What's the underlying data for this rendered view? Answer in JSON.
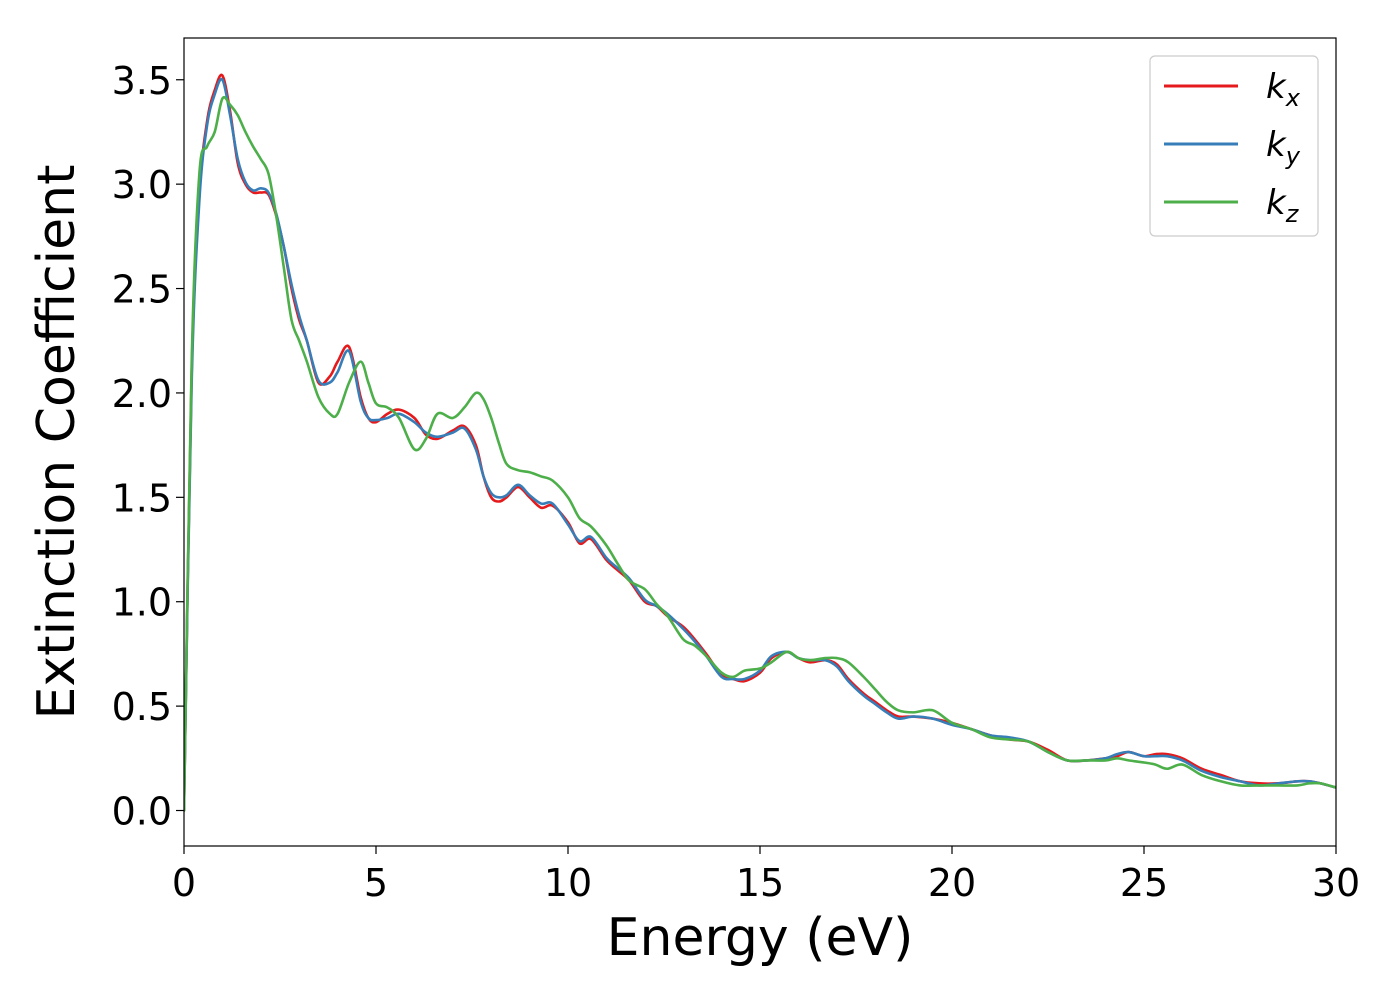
{
  "chart_data": {
    "type": "line",
    "title": "",
    "xlabel": "Energy (eV)",
    "ylabel": "Extinction Coefficient",
    "xlim": [
      0,
      30
    ],
    "ylim": [
      -0.17,
      3.7
    ],
    "x_ticks": [
      0,
      5,
      10,
      15,
      20,
      25,
      30
    ],
    "y_ticks": [
      0.0,
      0.5,
      1.0,
      1.5,
      2.0,
      2.5,
      3.0,
      3.5
    ],
    "x_tick_labels": [
      "0",
      "5",
      "10",
      "15",
      "20",
      "25",
      "30"
    ],
    "y_tick_labels": [
      "0.0",
      "0.5",
      "1.0",
      "1.5",
      "2.0",
      "2.5",
      "3.0",
      "3.5"
    ],
    "grid": false,
    "legend_position": "top-right",
    "series": [
      {
        "name": "k_x",
        "legend_base": "k",
        "legend_sub": "x",
        "color": "#e41a1c",
        "x": [
          0,
          0.2,
          0.4,
          0.6,
          0.8,
          1.0,
          1.2,
          1.4,
          1.6,
          1.8,
          2.0,
          2.2,
          2.4,
          2.6,
          2.8,
          3.0,
          3.2,
          3.5,
          3.8,
          4.0,
          4.3,
          4.6,
          4.8,
          5.0,
          5.3,
          5.6,
          6.0,
          6.3,
          6.6,
          7.0,
          7.3,
          7.6,
          7.8,
          8.0,
          8.2,
          8.4,
          8.7,
          9.0,
          9.3,
          9.6,
          10.0,
          10.3,
          10.6,
          11.0,
          11.3,
          11.6,
          12.0,
          12.3,
          12.6,
          13.0,
          13.3,
          13.6,
          14.0,
          14.3,
          14.6,
          15.0,
          15.3,
          15.7,
          16.0,
          16.3,
          16.7,
          17.0,
          17.3,
          17.7,
          18.0,
          18.3,
          18.6,
          19.0,
          19.5,
          20.0,
          20.5,
          21.0,
          21.5,
          22.0,
          22.5,
          23.0,
          23.5,
          24.0,
          24.3,
          24.6,
          25.0,
          25.3,
          25.6,
          26.0,
          26.5,
          27.0,
          27.5,
          28.0,
          28.5,
          29.0,
          29.3,
          29.6,
          30.0
        ],
        "values": [
          0.0,
          2.1,
          2.95,
          3.3,
          3.45,
          3.52,
          3.35,
          3.1,
          3.0,
          2.96,
          2.96,
          2.95,
          2.85,
          2.7,
          2.5,
          2.35,
          2.25,
          2.05,
          2.08,
          2.15,
          2.22,
          1.98,
          1.88,
          1.86,
          1.9,
          1.92,
          1.88,
          1.8,
          1.78,
          1.82,
          1.84,
          1.75,
          1.6,
          1.5,
          1.48,
          1.5,
          1.55,
          1.5,
          1.45,
          1.46,
          1.38,
          1.28,
          1.3,
          1.2,
          1.15,
          1.1,
          1.0,
          0.98,
          0.93,
          0.88,
          0.82,
          0.75,
          0.65,
          0.63,
          0.62,
          0.66,
          0.73,
          0.76,
          0.73,
          0.71,
          0.72,
          0.7,
          0.63,
          0.56,
          0.52,
          0.48,
          0.45,
          0.45,
          0.44,
          0.42,
          0.39,
          0.36,
          0.34,
          0.33,
          0.29,
          0.24,
          0.24,
          0.25,
          0.26,
          0.28,
          0.26,
          0.27,
          0.27,
          0.25,
          0.2,
          0.17,
          0.14,
          0.13,
          0.13,
          0.14,
          0.14,
          0.13,
          0.11
        ]
      },
      {
        "name": "k_y",
        "legend_base": "k",
        "legend_sub": "y",
        "color": "#377eb8",
        "x": [
          0,
          0.2,
          0.4,
          0.6,
          0.8,
          1.0,
          1.2,
          1.4,
          1.6,
          1.8,
          2.0,
          2.2,
          2.4,
          2.6,
          2.8,
          3.0,
          3.2,
          3.5,
          3.8,
          4.0,
          4.3,
          4.6,
          4.8,
          5.0,
          5.3,
          5.6,
          6.0,
          6.3,
          6.6,
          7.0,
          7.3,
          7.6,
          7.8,
          8.0,
          8.2,
          8.4,
          8.7,
          9.0,
          9.3,
          9.6,
          10.0,
          10.3,
          10.6,
          11.0,
          11.3,
          11.6,
          12.0,
          12.3,
          12.6,
          13.0,
          13.3,
          13.6,
          14.0,
          14.3,
          14.6,
          15.0,
          15.3,
          15.7,
          16.0,
          16.3,
          16.7,
          17.0,
          17.3,
          17.7,
          18.0,
          18.3,
          18.6,
          19.0,
          19.5,
          20.0,
          20.5,
          21.0,
          21.5,
          22.0,
          22.5,
          23.0,
          23.5,
          24.0,
          24.3,
          24.6,
          25.0,
          25.3,
          25.6,
          26.0,
          26.5,
          27.0,
          27.5,
          28.0,
          28.5,
          29.0,
          29.3,
          29.6,
          30.0
        ],
        "values": [
          0.0,
          2.05,
          2.92,
          3.28,
          3.43,
          3.5,
          3.33,
          3.12,
          3.01,
          2.97,
          2.98,
          2.96,
          2.86,
          2.7,
          2.52,
          2.37,
          2.25,
          2.06,
          2.05,
          2.1,
          2.2,
          1.96,
          1.88,
          1.87,
          1.88,
          1.9,
          1.86,
          1.81,
          1.79,
          1.81,
          1.83,
          1.73,
          1.6,
          1.52,
          1.5,
          1.51,
          1.56,
          1.51,
          1.47,
          1.47,
          1.37,
          1.29,
          1.31,
          1.21,
          1.16,
          1.11,
          1.01,
          0.98,
          0.94,
          0.87,
          0.81,
          0.74,
          0.64,
          0.63,
          0.63,
          0.67,
          0.74,
          0.76,
          0.73,
          0.72,
          0.72,
          0.69,
          0.62,
          0.55,
          0.51,
          0.47,
          0.44,
          0.45,
          0.44,
          0.41,
          0.39,
          0.36,
          0.35,
          0.33,
          0.28,
          0.24,
          0.24,
          0.25,
          0.27,
          0.28,
          0.26,
          0.26,
          0.26,
          0.24,
          0.19,
          0.16,
          0.14,
          0.12,
          0.13,
          0.14,
          0.14,
          0.13,
          0.11
        ]
      },
      {
        "name": "k_z",
        "legend_base": "k",
        "legend_sub": "z",
        "color": "#4daf4a",
        "x": [
          0,
          0.2,
          0.4,
          0.6,
          0.8,
          1.0,
          1.2,
          1.4,
          1.6,
          1.8,
          2.0,
          2.2,
          2.4,
          2.6,
          2.8,
          3.0,
          3.2,
          3.5,
          3.8,
          4.0,
          4.3,
          4.6,
          4.8,
          5.0,
          5.3,
          5.6,
          6.0,
          6.3,
          6.6,
          7.0,
          7.3,
          7.6,
          7.8,
          8.0,
          8.2,
          8.4,
          8.7,
          9.0,
          9.3,
          9.6,
          10.0,
          10.3,
          10.6,
          11.0,
          11.3,
          11.6,
          12.0,
          12.3,
          12.6,
          13.0,
          13.3,
          13.6,
          14.0,
          14.3,
          14.6,
          15.0,
          15.3,
          15.7,
          16.0,
          16.3,
          16.7,
          17.0,
          17.3,
          17.7,
          18.0,
          18.3,
          18.6,
          19.0,
          19.5,
          20.0,
          20.5,
          21.0,
          21.5,
          22.0,
          22.5,
          23.0,
          23.5,
          24.0,
          24.3,
          24.6,
          25.0,
          25.3,
          25.6,
          26.0,
          26.5,
          27.0,
          27.5,
          28.0,
          28.5,
          29.0,
          29.3,
          29.6,
          30.0
        ],
        "values": [
          0.0,
          2.15,
          3.05,
          3.18,
          3.25,
          3.41,
          3.38,
          3.33,
          3.25,
          3.18,
          3.12,
          3.05,
          2.85,
          2.6,
          2.35,
          2.25,
          2.15,
          1.98,
          1.9,
          1.9,
          2.05,
          2.15,
          2.05,
          1.95,
          1.93,
          1.88,
          1.73,
          1.78,
          1.9,
          1.88,
          1.93,
          2.0,
          1.97,
          1.88,
          1.76,
          1.66,
          1.63,
          1.62,
          1.6,
          1.58,
          1.5,
          1.4,
          1.36,
          1.27,
          1.18,
          1.1,
          1.06,
          0.99,
          0.93,
          0.82,
          0.79,
          0.74,
          0.66,
          0.64,
          0.67,
          0.68,
          0.71,
          0.76,
          0.73,
          0.72,
          0.73,
          0.73,
          0.71,
          0.64,
          0.58,
          0.52,
          0.48,
          0.47,
          0.48,
          0.42,
          0.39,
          0.35,
          0.34,
          0.33,
          0.28,
          0.24,
          0.24,
          0.24,
          0.25,
          0.24,
          0.23,
          0.22,
          0.2,
          0.22,
          0.17,
          0.14,
          0.12,
          0.12,
          0.12,
          0.12,
          0.13,
          0.13,
          0.11
        ]
      }
    ]
  }
}
